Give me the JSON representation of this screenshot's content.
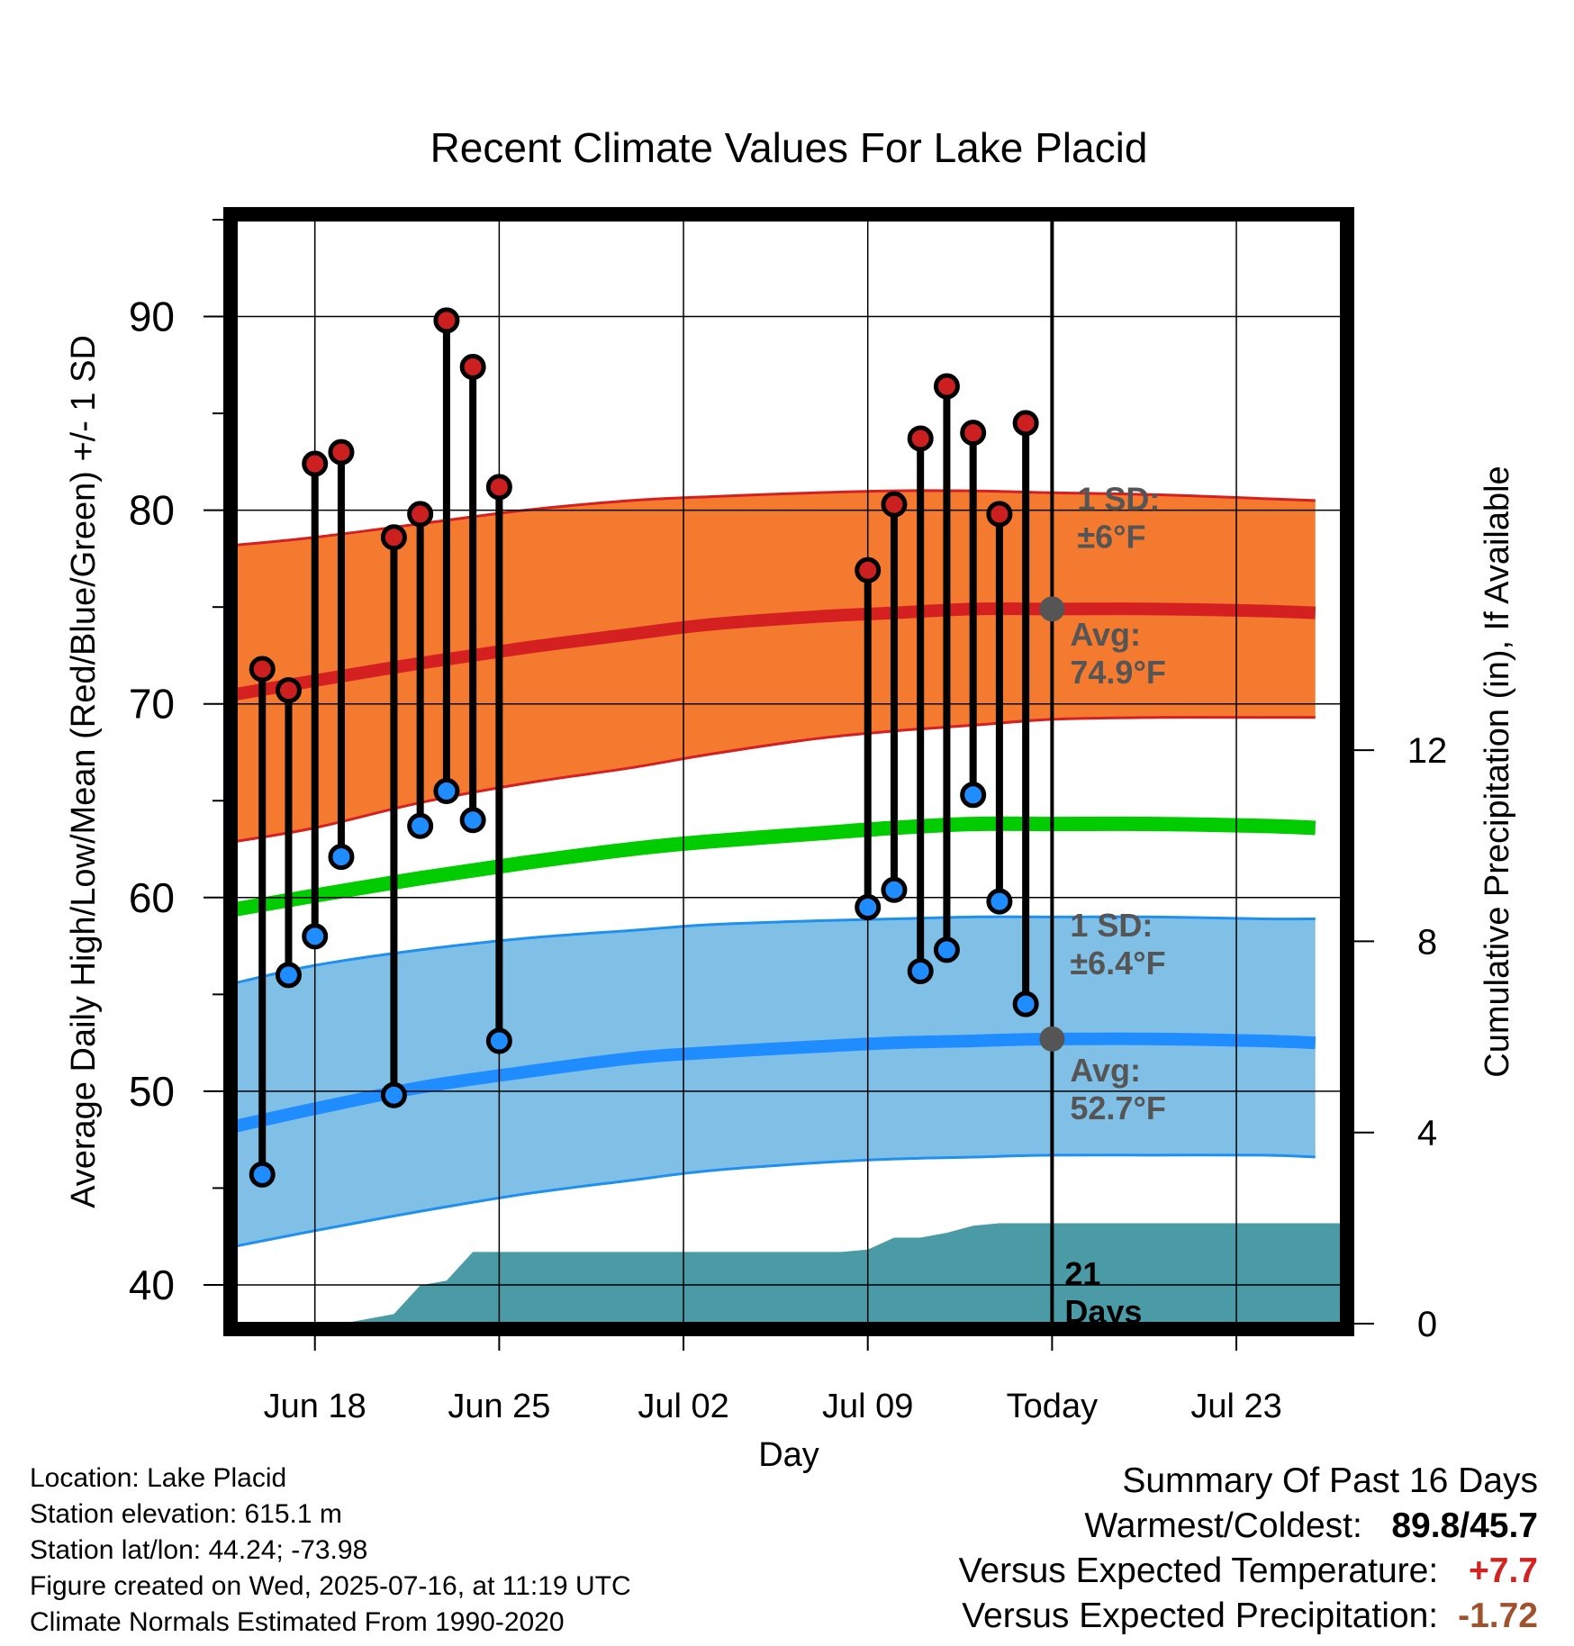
{
  "chart_data": {
    "type": "line",
    "title": "Recent Climate Values For Lake Placid",
    "xlabel": "Day",
    "ylabel": "Average Daily High/Low/Mean (Red/Blue/Green) +/- 1 SD",
    "y2label": "Cumulative Precipitation (in), If Available",
    "xlim": [
      "2025-06-15",
      "2025-07-27"
    ],
    "ylim": [
      38,
      95
    ],
    "y2lim": [
      0,
      23.1
    ],
    "grid": true,
    "x_ticks": [
      {
        "date": "2025-06-18",
        "label": "Jun 18"
      },
      {
        "date": "2025-06-25",
        "label": "Jun 25"
      },
      {
        "date": "2025-07-02",
        "label": "Jul 02"
      },
      {
        "date": "2025-07-09",
        "label": "Jul 09"
      },
      {
        "date": "2025-07-16",
        "label": "Today"
      },
      {
        "date": "2025-07-23",
        "label": "Jul 23"
      }
    ],
    "y_ticks": [
      40,
      50,
      60,
      70,
      80,
      90
    ],
    "y2_ticks": [
      0,
      4,
      8,
      12
    ],
    "normals": {
      "dates": [
        "2025-06-15",
        "2025-06-18",
        "2025-06-22",
        "2025-06-26",
        "2025-06-30",
        "2025-07-03",
        "2025-07-07",
        "2025-07-10",
        "2025-07-13",
        "2025-07-16",
        "2025-07-20",
        "2025-07-24",
        "2025-07-26"
      ],
      "high_mean": [
        70.5,
        71.2,
        72.1,
        72.9,
        73.6,
        74.1,
        74.5,
        74.7,
        74.9,
        74.9,
        74.9,
        74.8,
        74.7
      ],
      "high_sd_upper": [
        78.2,
        78.6,
        79.3,
        80.0,
        80.5,
        80.7,
        80.9,
        81.0,
        81.0,
        80.9,
        80.8,
        80.6,
        80.5
      ],
      "high_sd_lower": [
        62.9,
        63.6,
        64.9,
        65.9,
        66.7,
        67.4,
        68.2,
        68.6,
        68.9,
        69.2,
        69.3,
        69.3,
        69.3
      ],
      "mean": [
        59.4,
        60.1,
        61.0,
        61.8,
        62.5,
        62.9,
        63.3,
        63.6,
        63.8,
        63.8,
        63.8,
        63.7,
        63.6
      ],
      "low_mean": [
        48.2,
        49.1,
        50.2,
        51.0,
        51.7,
        52.0,
        52.3,
        52.5,
        52.6,
        52.7,
        52.7,
        52.6,
        52.5
      ],
      "low_sd_upper": [
        55.6,
        56.5,
        57.3,
        57.9,
        58.3,
        58.6,
        58.8,
        58.9,
        59.0,
        59.0,
        59.0,
        58.9,
        58.9
      ],
      "low_sd_lower": [
        42.0,
        42.8,
        43.8,
        44.7,
        45.4,
        45.9,
        46.3,
        46.5,
        46.6,
        46.7,
        46.7,
        46.7,
        46.6
      ]
    },
    "observed": {
      "dates": [
        "2025-06-16",
        "2025-06-17",
        "2025-06-18",
        "2025-06-19",
        "2025-06-21",
        "2025-06-22",
        "2025-06-23",
        "2025-06-24",
        "2025-06-25",
        "2025-07-09",
        "2025-07-10",
        "2025-07-11",
        "2025-07-12",
        "2025-07-13",
        "2025-07-14",
        "2025-07-15"
      ],
      "high": [
        71.8,
        70.7,
        82.4,
        83.0,
        78.6,
        79.8,
        89.8,
        87.4,
        81.2,
        76.9,
        80.3,
        83.7,
        86.4,
        84.0,
        79.8,
        84.5
      ],
      "low": [
        45.7,
        56.0,
        58.0,
        62.1,
        49.8,
        63.7,
        65.5,
        64.0,
        52.6,
        59.5,
        60.4,
        56.2,
        57.3,
        65.3,
        59.8,
        54.5
      ]
    },
    "precipitation": {
      "dates": [
        "2025-06-15",
        "2025-06-17",
        "2025-06-18",
        "2025-06-19",
        "2025-06-20",
        "2025-06-21",
        "2025-06-22",
        "2025-06-23",
        "2025-06-24",
        "2025-06-25",
        "2025-07-08",
        "2025-07-09",
        "2025-07-10",
        "2025-07-11",
        "2025-07-12",
        "2025-07-13",
        "2025-07-14",
        "2025-07-16",
        "2025-07-26"
      ],
      "cumulative": [
        0.0,
        0.0,
        0.0,
        0.0,
        0.1,
        0.2,
        0.8,
        0.9,
        1.5,
        1.5,
        1.5,
        1.55,
        1.8,
        1.8,
        1.9,
        2.05,
        2.1,
        2.1,
        2.1
      ]
    },
    "annotations": {
      "high_sd": "1 SD:\n±6°F",
      "high_avg": "Avg:\n74.9°F",
      "low_sd": "1 SD:\n±6.4°F",
      "low_avg": "Avg:\n52.7°F",
      "days": "21\nDays"
    },
    "colors": {
      "high_band": "#f47a30",
      "high_band_edge": "#d42020",
      "high_line": "#d42020",
      "mean_line": "#00cc00",
      "low_band": "#80c0e6",
      "low_band_edge": "#2090ee",
      "low_line": "#1f8cff",
      "precip": "#4a9ba6",
      "high_dot": "#cc2020",
      "low_dot": "#1f8cff",
      "today_dot": "#555555",
      "annotation_text": "#555555"
    }
  },
  "info": {
    "location": "Location: Lake Placid",
    "elevation": "Station elevation: 615.1 m",
    "latlon": "Station lat/lon: 44.24; -73.98",
    "created": "Figure created on Wed, 2025-07-16, at 11:19 UTC",
    "normals": "Climate Normals Estimated From 1990-2020"
  },
  "summary": {
    "title": "Summary Of Past 16 Days",
    "warmest_label": "Warmest/Coldest:",
    "warmest_high": "89.8",
    "warmest_sep": "/",
    "warmest_low": "45.7",
    "temp_label": "Versus Expected Temperature:",
    "temp_value": "+7.7",
    "temp_color": "#d22222",
    "precip_label": "Versus Expected Precipitation:",
    "precip_value": "-1.72",
    "precip_color": "#a0522d"
  }
}
